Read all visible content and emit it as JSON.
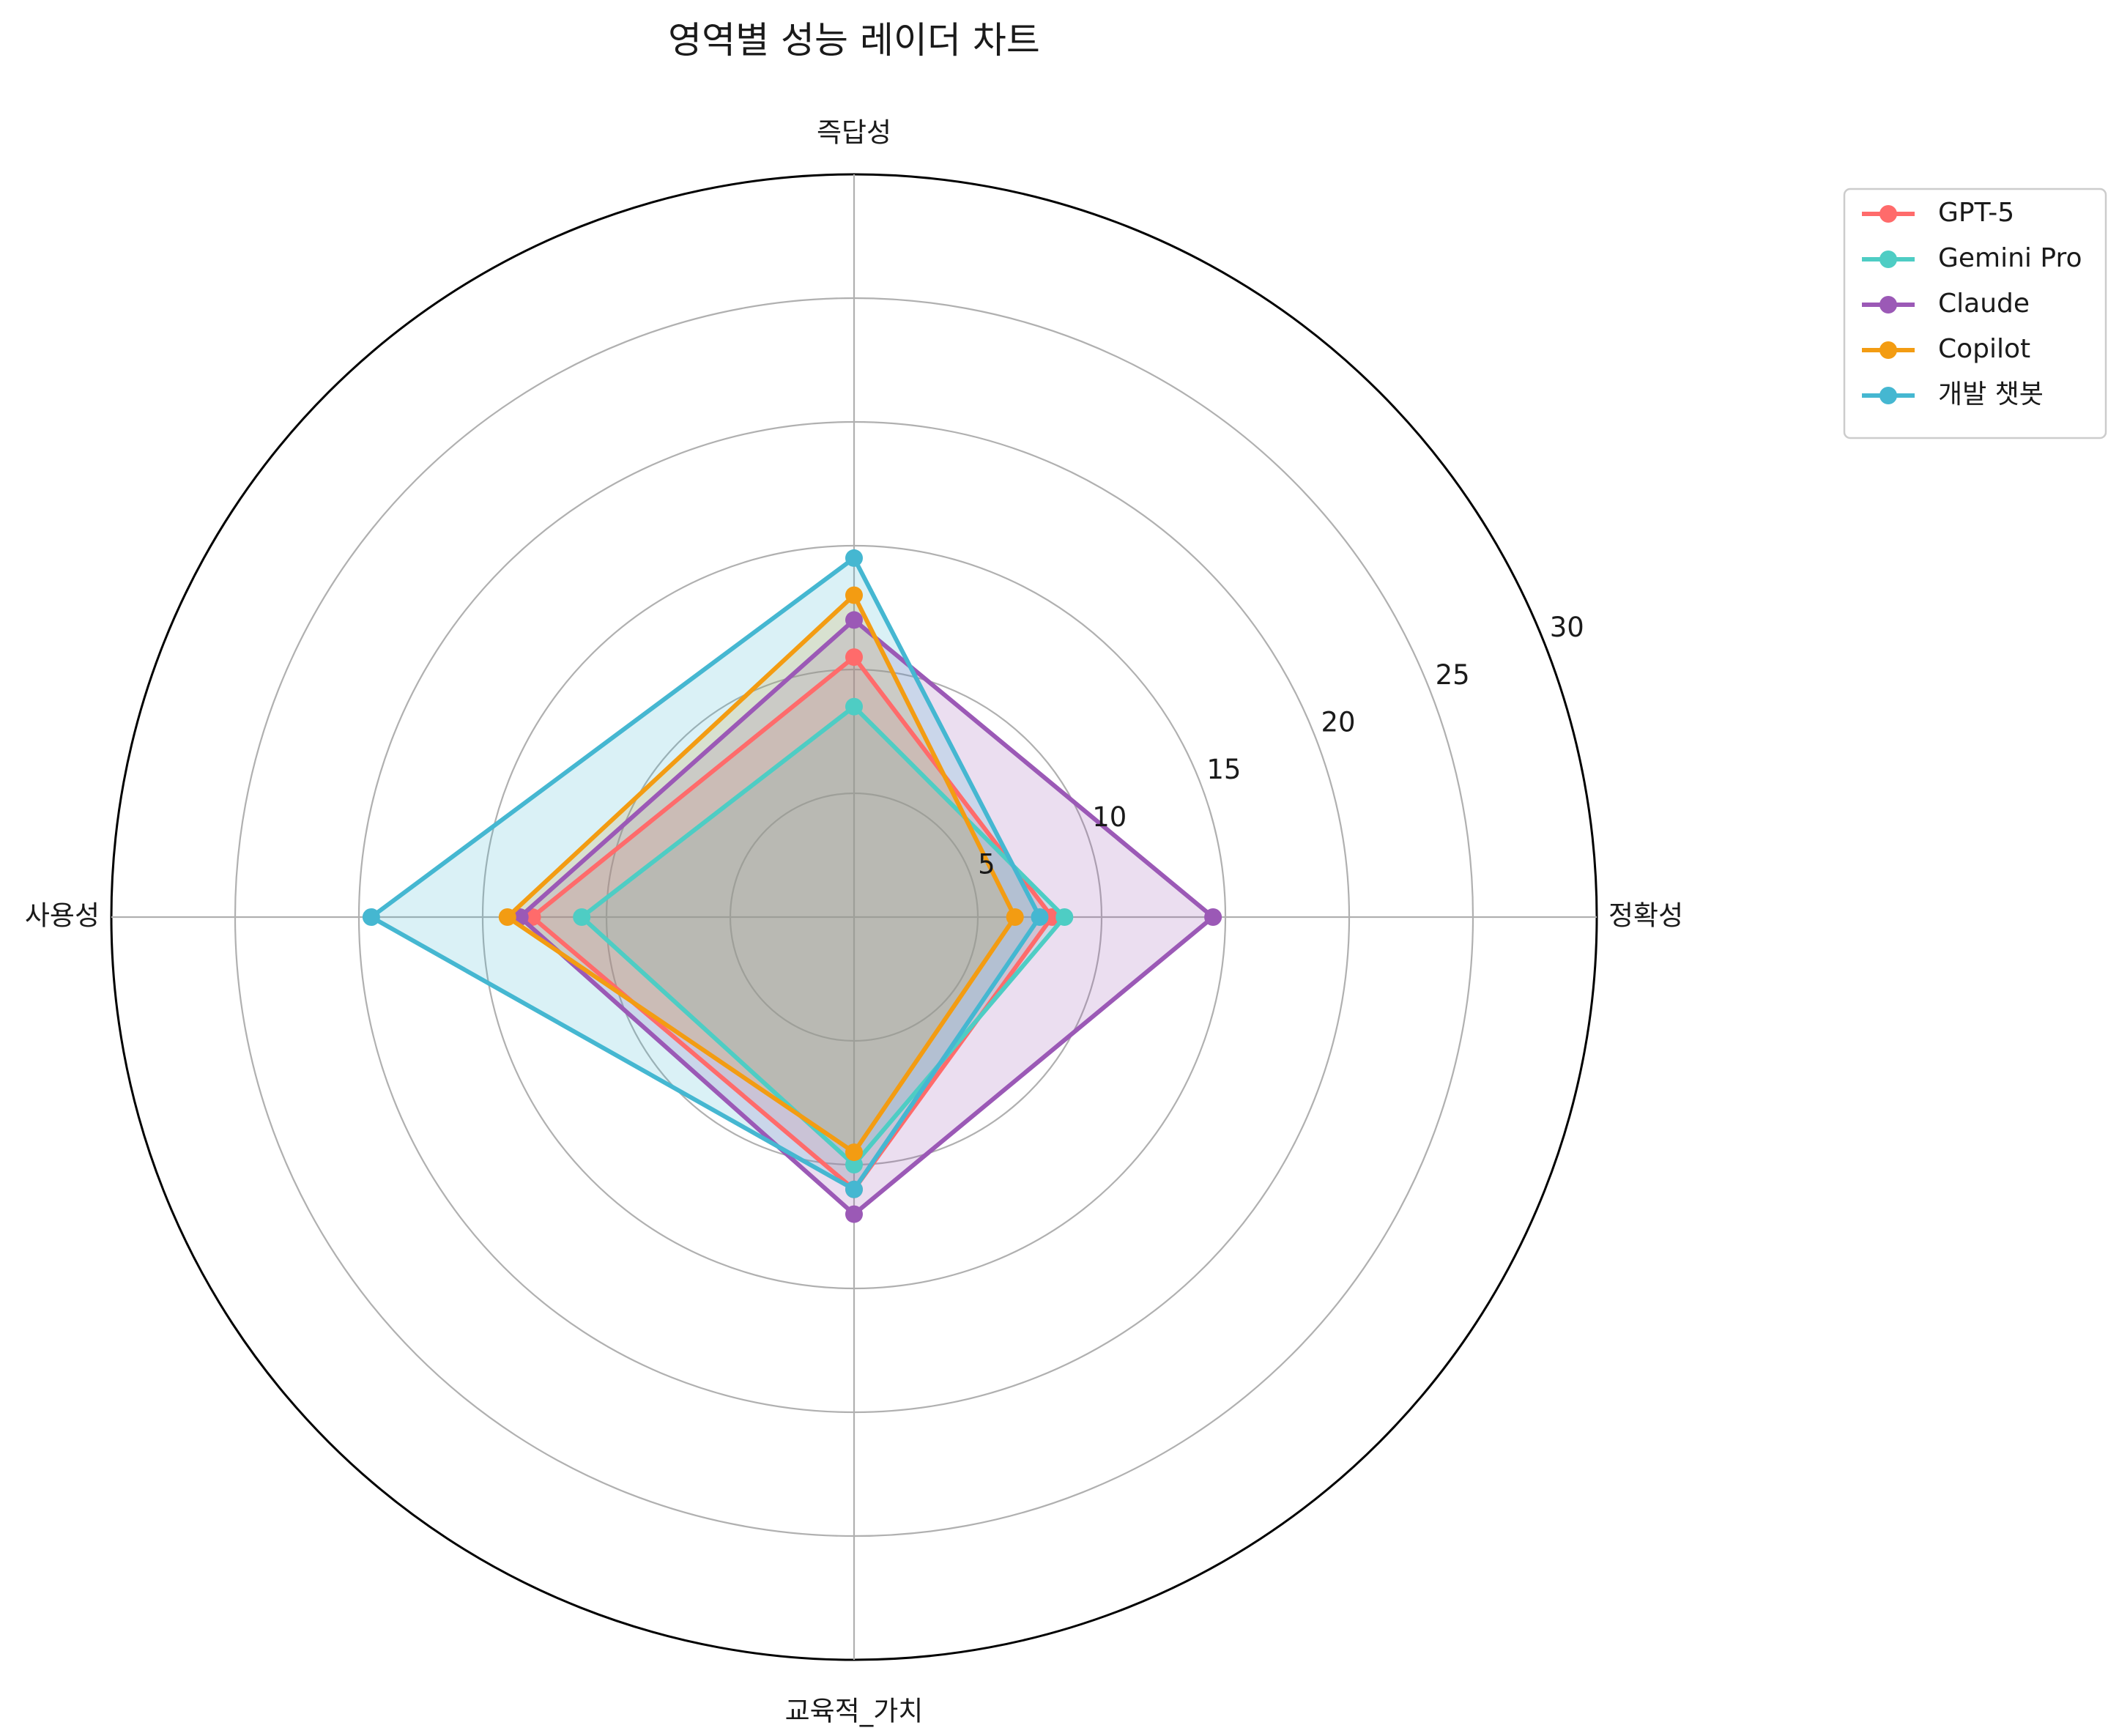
{
  "chart_data": {
    "type": "radar",
    "title": "영역별 성능 레이더 차트",
    "axes": [
      "정확성",
      "즉답성",
      "사용성",
      "교육적_가치"
    ],
    "rlim": [
      0,
      30
    ],
    "rticks": [
      "5",
      "10",
      "15",
      "20",
      "25",
      "30"
    ],
    "rtick_values": [
      5,
      10,
      15,
      20,
      25,
      30
    ],
    "grid": true,
    "legend_position": "top-right",
    "series": [
      {
        "name": "GPT-5",
        "values": [
          8,
          10.5,
          13,
          11
        ],
        "color": "#ff6b6b"
      },
      {
        "name": "Gemini Pro",
        "values": [
          8.5,
          8.5,
          11,
          10
        ],
        "color": "#4ecdc4"
      },
      {
        "name": "Claude",
        "values": [
          14.5,
          12,
          13.5,
          12
        ],
        "color": "#9b59b6"
      },
      {
        "name": "Copilot",
        "values": [
          6.5,
          13,
          14,
          9.5
        ],
        "color": "#f39c12"
      },
      {
        "name": "개발 챗봇",
        "values": [
          7.5,
          14.5,
          19.5,
          11
        ],
        "color": "#45b7d1"
      }
    ]
  }
}
